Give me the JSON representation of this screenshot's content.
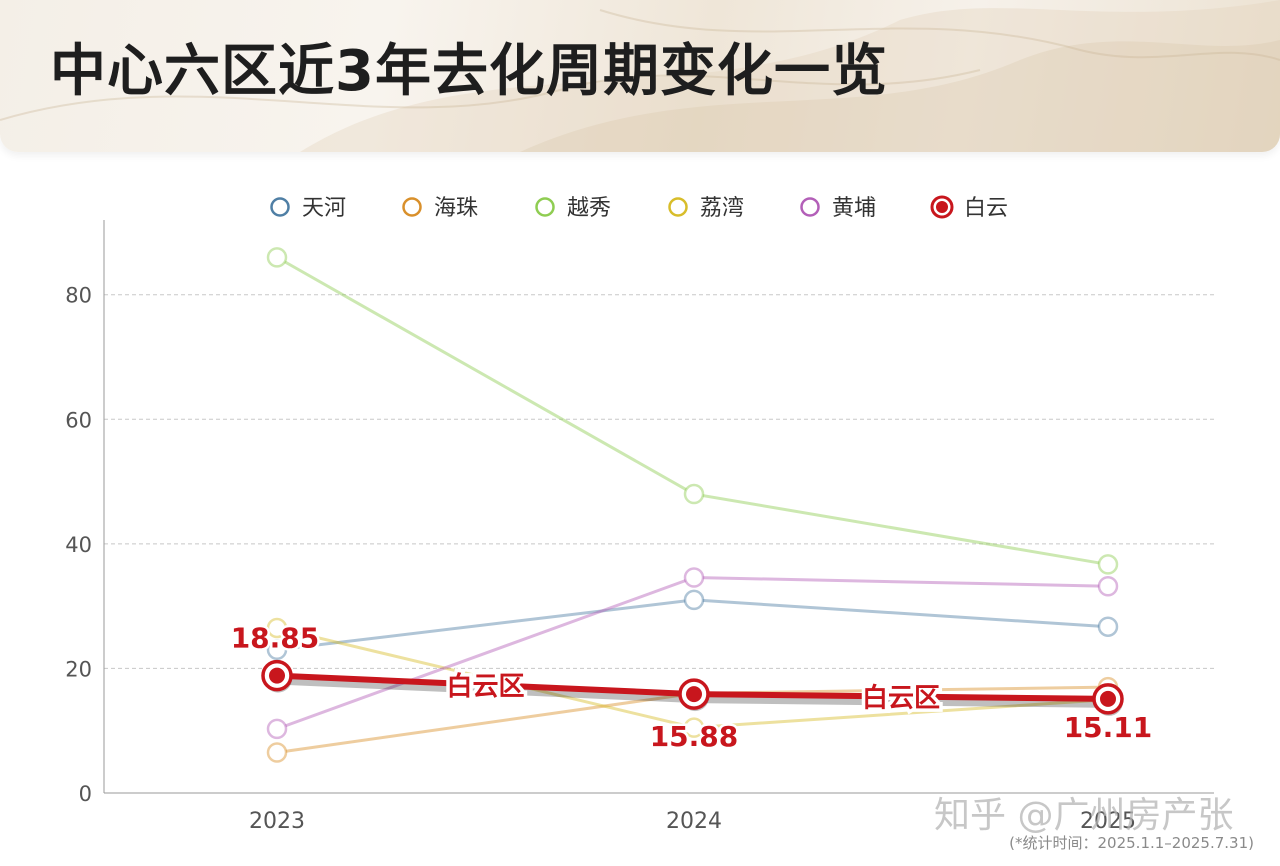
{
  "title": "中心六区近3年去化周期变化一览",
  "footnote": "(*统计时间：2025.1.1–2025.7.31)",
  "watermark": "知乎 @广州房产张",
  "colors": {
    "title": "#1e1e1e",
    "grid": "#c8c8c8",
    "axis_text": "#555555",
    "highlight": "#c8161d"
  },
  "chart_data": {
    "type": "line",
    "categories": [
      "2023",
      "2024",
      "2025"
    ],
    "ylim": [
      0,
      92
    ],
    "yticks": [
      0,
      20,
      40,
      60,
      80
    ],
    "grid": true,
    "legend_position": "top",
    "series": [
      {
        "name": "天河",
        "values": [
          23.0,
          31.0,
          26.7
        ],
        "color": "#4f7fa5"
      },
      {
        "name": "海珠",
        "values": [
          6.5,
          16.0,
          17.0
        ],
        "color": "#d9902b"
      },
      {
        "name": "越秀",
        "values": [
          86.0,
          48.0,
          36.7
        ],
        "color": "#8fcd52"
      },
      {
        "name": "荔湾",
        "values": [
          26.5,
          10.5,
          15.0
        ],
        "color": "#d8bd2a"
      },
      {
        "name": "黄埔",
        "values": [
          10.3,
          34.6,
          33.2
        ],
        "color": "#b35fb8"
      },
      {
        "name": "白云",
        "values": [
          18.85,
          15.88,
          15.11
        ],
        "color": "#c8161d",
        "highlight": true
      }
    ],
    "data_labels": [
      "18.85",
      "15.88",
      "15.11"
    ],
    "annotations": [
      "白云区",
      "白云区"
    ]
  }
}
